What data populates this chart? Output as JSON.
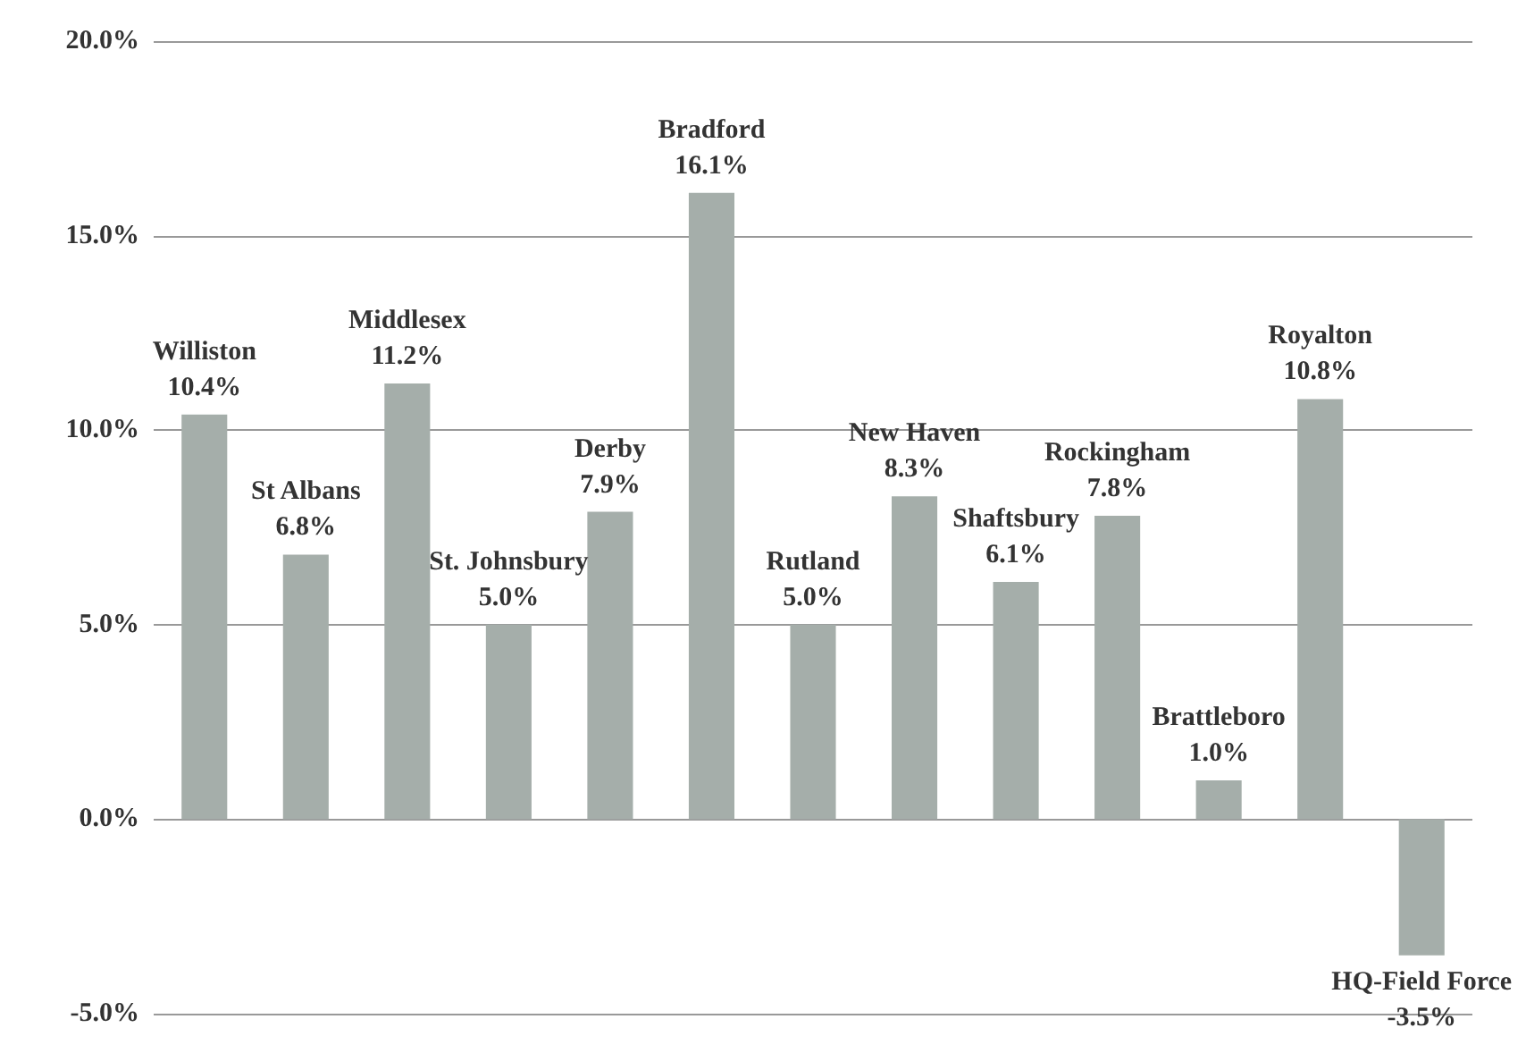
{
  "chart_data": {
    "type": "bar",
    "categories": [
      "Williston",
      "St Albans",
      "Middlesex",
      "St. Johnsbury",
      "Derby",
      "Bradford",
      "Rutland",
      "New Haven",
      "Shaftsbury",
      "Rockingham",
      "Brattleboro",
      "Royalton",
      "HQ-Field Force"
    ],
    "values": [
      10.4,
      6.8,
      11.2,
      5.0,
      7.9,
      16.1,
      5.0,
      8.3,
      6.1,
      7.8,
      1.0,
      10.8,
      -3.5
    ],
    "value_labels": [
      "10.4%",
      "6.8%",
      "11.2%",
      "5.0%",
      "7.9%",
      "16.1%",
      "5.0%",
      "8.3%",
      "6.1%",
      "7.8%",
      "1.0%",
      "10.8%",
      "-3.5%"
    ],
    "color": "#a5aeaa",
    "ylim": [
      -5,
      20
    ],
    "yticks": [
      {
        "value": -5,
        "label": "-5.0%"
      },
      {
        "value": 0,
        "label": "0.0%"
      },
      {
        "value": 5,
        "label": "5.0%"
      },
      {
        "value": 10,
        "label": "10.0%"
      },
      {
        "value": 15,
        "label": "15.0%"
      },
      {
        "value": 20,
        "label": "20.0%"
      }
    ],
    "grid": "y",
    "tick_labels": "y"
  }
}
